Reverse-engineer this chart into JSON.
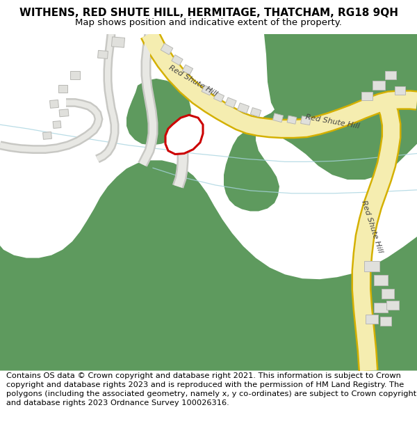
{
  "title": "WITHENS, RED SHUTE HILL, HERMITAGE, THATCHAM, RG18 9QH",
  "subtitle": "Map shows position and indicative extent of the property.",
  "footer": "Contains OS data © Crown copyright and database right 2021. This information is subject to Crown copyright and database rights 2023 and is reproduced with the permission of\nHM Land Registry. The polygons (including the associated geometry, namely x, y\nco-ordinates) are subject to Crown copyright and database rights 2023 Ordnance Survey\n100026316.",
  "bg_color": "#ffffff",
  "green_color": "#5e9a5e",
  "road_fill": "#f5edb0",
  "road_border": "#d4b000",
  "road_label_color": "#444444",
  "building_color": "#e0e0dc",
  "building_border": "#b8b8b4",
  "path_color": "#d8d8d8",
  "path_border": "#c0c0c0",
  "stream_color": "#a8d4e0",
  "plot_border": "#cc0000",
  "title_fontsize": 11,
  "subtitle_fontsize": 9.5,
  "footer_fontsize": 8.2
}
